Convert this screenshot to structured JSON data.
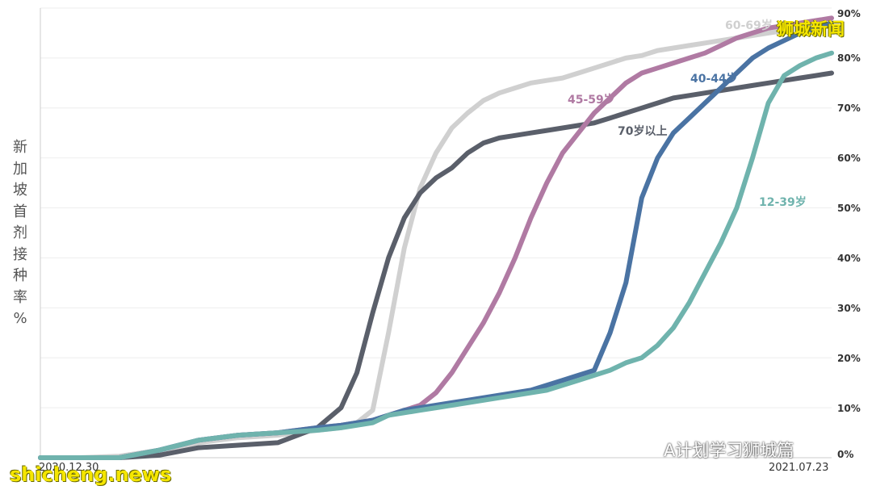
{
  "chart_data": {
    "type": "line",
    "ylabel_chars": [
      "新",
      "加",
      "坡",
      "首",
      "剂",
      "接",
      "种",
      "率",
      "%"
    ],
    "x_start_label": "2020.12.30",
    "x_end_label": "2021.07.23",
    "x_range": [
      "2020.12.30",
      "2021.07.23"
    ],
    "ylim": [
      0,
      90
    ],
    "yticks": [
      "0%",
      "10%",
      "20%",
      "30%",
      "40%",
      "50%",
      "60%",
      "70%",
      "80%",
      "90%"
    ],
    "ytick_values": [
      0,
      10,
      20,
      30,
      40,
      50,
      60,
      70,
      80,
      90
    ],
    "grid": true,
    "x": [
      0,
      0.05,
      0.1,
      0.15,
      0.2,
      0.25,
      0.3,
      0.35,
      0.38,
      0.4,
      0.42,
      0.44,
      0.46,
      0.48,
      0.5,
      0.52,
      0.54,
      0.56,
      0.58,
      0.6,
      0.62,
      0.64,
      0.66,
      0.68,
      0.7,
      0.72,
      0.74,
      0.76,
      0.78,
      0.8,
      0.82,
      0.84,
      0.86,
      0.88,
      0.9,
      0.92,
      0.94,
      0.96,
      0.98,
      1.0
    ],
    "series": [
      {
        "name": "60-69岁",
        "color": "#d0d0d0",
        "values": [
          0,
          0,
          0.3,
          1.5,
          3,
          4,
          4.5,
          5.5,
          6,
          7,
          9.5,
          25,
          42,
          54,
          61,
          66,
          69,
          71.5,
          73,
          74,
          75,
          75.5,
          76,
          77,
          78,
          79,
          80,
          80.5,
          81.5,
          82,
          82.5,
          83,
          83.5,
          84,
          84.5,
          85,
          85.5,
          86,
          86.5,
          87
        ]
      },
      {
        "name": "70岁以上",
        "color": "#5a5f6a",
        "values": [
          0,
          0,
          0,
          0.5,
          2,
          2.5,
          3,
          6,
          10,
          17,
          29,
          40,
          48,
          53,
          56,
          58,
          61,
          63,
          64,
          64.5,
          65,
          65.5,
          66,
          66.5,
          67,
          68,
          69,
          70,
          71,
          72,
          72.5,
          73,
          73.5,
          74,
          74.5,
          75,
          75.5,
          76,
          76.5,
          77
        ]
      },
      {
        "name": "45-59岁",
        "color": "#b07aa3",
        "values": [
          0,
          0,
          0,
          1.5,
          3.5,
          4.5,
          5,
          6,
          6.5,
          7,
          7.5,
          8.5,
          9.5,
          10.5,
          13,
          17,
          22,
          27,
          33,
          40,
          48,
          55,
          61,
          65,
          69,
          72,
          75,
          77,
          78,
          79,
          80,
          81,
          82.5,
          84,
          85,
          86,
          86.5,
          87,
          87.5,
          88
        ]
      },
      {
        "name": "40-44岁",
        "color": "#4a73a3",
        "values": [
          0,
          0,
          0,
          1.5,
          3.5,
          4.5,
          5,
          6,
          6.5,
          7,
          7.5,
          8.5,
          9.5,
          10,
          10.5,
          11,
          11.5,
          12,
          12.5,
          13,
          13.5,
          14.5,
          15.5,
          16.5,
          17.5,
          25,
          35,
          52,
          60,
          65,
          68,
          71,
          74,
          77,
          80,
          82,
          83.5,
          85,
          86,
          87
        ]
      },
      {
        "name": "12-39岁",
        "color": "#6fb3ad",
        "values": [
          0,
          0,
          0,
          1.5,
          3.5,
          4.5,
          5,
          5.5,
          6,
          6.5,
          7,
          8.5,
          9,
          9.5,
          10,
          10.5,
          11,
          11.5,
          12,
          12.5,
          13,
          13.5,
          14.5,
          15.5,
          16.5,
          17.5,
          19,
          20,
          22.5,
          26,
          31,
          37,
          43,
          50,
          60,
          71,
          76.5,
          78.5,
          80,
          81
        ]
      }
    ]
  },
  "series_labels": [
    {
      "text": "60-69岁",
      "color": "#d0d0d0"
    },
    {
      "text": "45-59岁",
      "color": "#b07aa3"
    },
    {
      "text": "40-44岁",
      "color": "#4a73a3"
    },
    {
      "text": "70岁以上",
      "color": "#5a5f6a"
    },
    {
      "text": "12-39岁",
      "color": "#6fb3ad"
    }
  ],
  "watermarks": {
    "top_right": "狮城新闻",
    "bottom_left": "shicheng.news",
    "wechat": "A计划学习狮城篇"
  },
  "colors": {
    "grid": "#eeeeee",
    "axis": "#cccccc",
    "watermark_yellow": "#f5e600"
  }
}
